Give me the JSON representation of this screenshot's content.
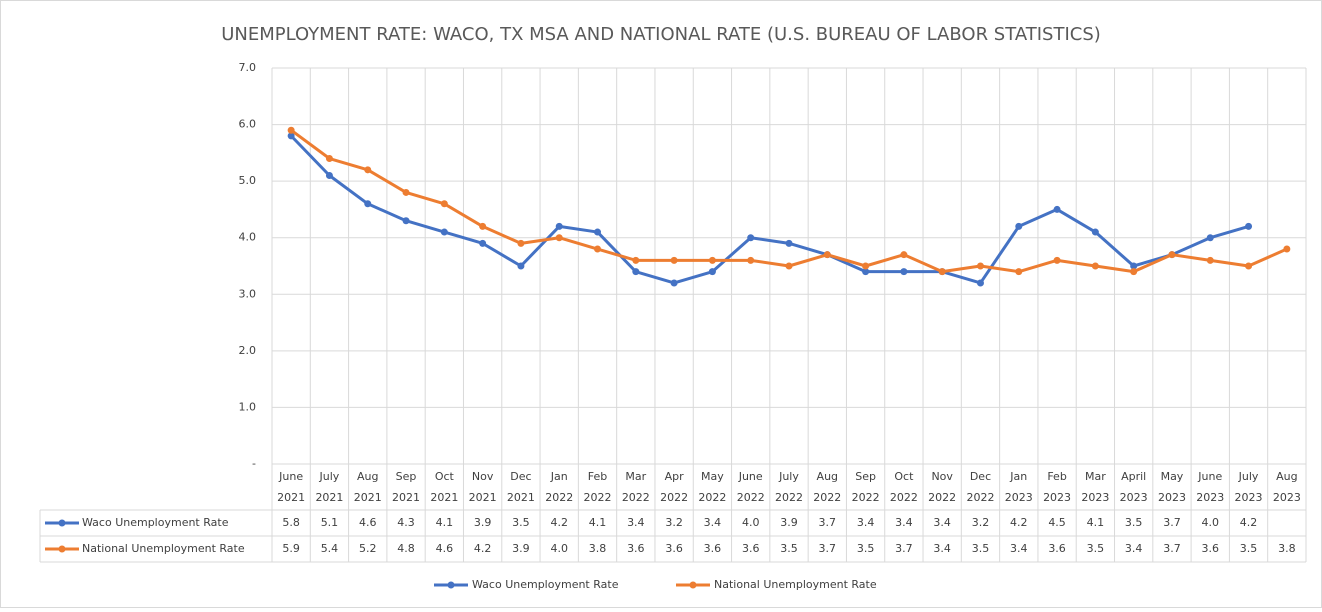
{
  "chart_data": {
    "type": "line",
    "title": "UNEMPLOYMENT RATE:  WACO, TX MSA  AND NATIONAL RATE (U.S. BUREAU OF LABOR STATISTICS)",
    "categories": [
      [
        "June",
        "2021"
      ],
      [
        "July",
        "2021"
      ],
      [
        "Aug",
        "2021"
      ],
      [
        "Sep",
        "2021"
      ],
      [
        "Oct",
        "2021"
      ],
      [
        "Nov",
        "2021"
      ],
      [
        "Dec",
        "2021"
      ],
      [
        "Jan",
        "2022"
      ],
      [
        "Feb",
        "2022"
      ],
      [
        "Mar",
        "2022"
      ],
      [
        "Apr",
        "2022"
      ],
      [
        "May",
        "2022"
      ],
      [
        "June",
        "2022"
      ],
      [
        "July",
        "2022"
      ],
      [
        "Aug",
        "2022"
      ],
      [
        "Sep",
        "2022"
      ],
      [
        "Oct",
        "2022"
      ],
      [
        "Nov",
        "2022"
      ],
      [
        "Dec",
        "2022"
      ],
      [
        "Jan",
        "2023"
      ],
      [
        "Feb",
        "2023"
      ],
      [
        "Mar",
        "2023"
      ],
      [
        "April",
        "2023"
      ],
      [
        "May",
        "2023"
      ],
      [
        "June",
        "2023"
      ],
      [
        "July",
        "2023"
      ],
      [
        "Aug",
        "2023"
      ]
    ],
    "series": [
      {
        "name": "Waco Unemployment Rate",
        "color": "#4472c4",
        "values": [
          5.8,
          5.1,
          4.6,
          4.3,
          4.1,
          3.9,
          3.5,
          4.2,
          4.1,
          3.4,
          3.2,
          3.4,
          4.0,
          3.9,
          3.7,
          3.4,
          3.4,
          3.4,
          3.2,
          4.2,
          4.5,
          4.1,
          3.5,
          3.7,
          4.0,
          4.2,
          null
        ],
        "value_labels": [
          "5.8",
          "5.1",
          "4.6",
          "4.3",
          "4.1",
          "3.9",
          "3.5",
          "4.2",
          "4.1",
          "3.4",
          "3.2",
          "3.4",
          "4.0",
          "3.9",
          "3.7",
          "3.4",
          "3.4",
          "3.4",
          "3.2",
          "4.2",
          "4.5",
          "4.1",
          "3.5",
          "3.7",
          "4.0",
          "4.2",
          null
        ]
      },
      {
        "name": "National Unemployment Rate",
        "color": "#ed7d31",
        "values": [
          5.9,
          5.4,
          5.2,
          4.8,
          4.6,
          4.2,
          3.9,
          4.0,
          3.8,
          3.6,
          3.6,
          3.6,
          3.6,
          3.5,
          3.7,
          3.5,
          3.7,
          3.4,
          3.5,
          3.4,
          3.6,
          3.5,
          3.4,
          3.7,
          3.6,
          3.5,
          3.8
        ],
        "value_labels": [
          "5.9",
          "5.4",
          "5.2",
          "4.8",
          "4.6",
          "4.2",
          "3.9",
          "4.0",
          "3.8",
          "3.6",
          "3.6",
          "3.6",
          "3.6",
          "3.5",
          "3.7",
          "3.5",
          "3.7",
          "3.4",
          "3.5",
          "3.4",
          "3.6",
          "3.5",
          "3.4",
          "3.7",
          "3.6",
          "3.5",
          "3.8"
        ]
      }
    ],
    "ylim": [
      0,
      7
    ],
    "yticks": [
      {
        "value": 0,
        "label": "-"
      },
      {
        "value": 1,
        "label": "1.0"
      },
      {
        "value": 2,
        "label": "2.0"
      },
      {
        "value": 3,
        "label": "3.0"
      },
      {
        "value": 4,
        "label": "4.0"
      },
      {
        "value": 5,
        "label": "5.0"
      },
      {
        "value": 6,
        "label": "6.0"
      },
      {
        "value": 7,
        "label": "7.0"
      }
    ],
    "grid": true,
    "legend": "bottom"
  }
}
